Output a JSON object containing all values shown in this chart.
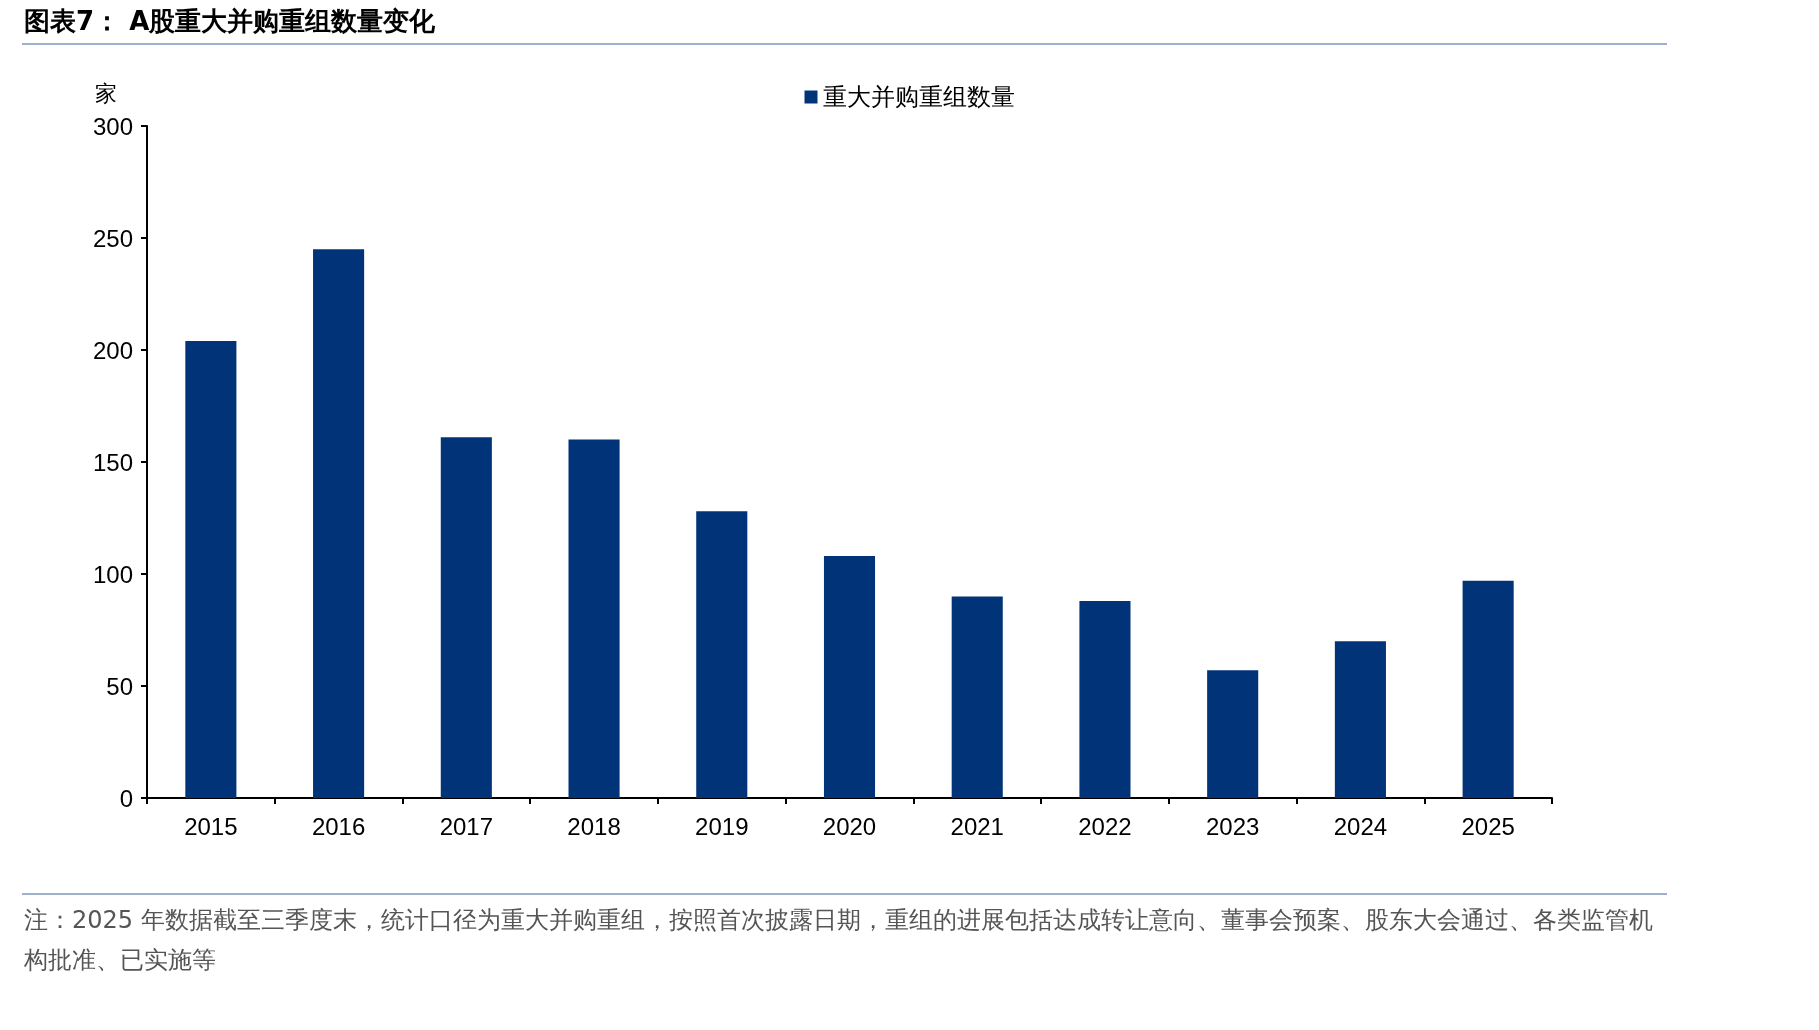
{
  "chart_data": {
    "type": "bar",
    "title": "图表7： A股重大并购重组数量变化",
    "ylabel": "家",
    "categories": [
      "2015",
      "2016",
      "2017",
      "2018",
      "2019",
      "2020",
      "2021",
      "2022",
      "2023",
      "2024",
      "2025"
    ],
    "series": [
      {
        "name": "重大并购重组数量",
        "color": "#003378",
        "values": [
          204,
          245,
          161,
          160,
          128,
          108,
          90,
          88,
          57,
          70,
          97
        ]
      }
    ],
    "ylim": [
      0,
      300
    ],
    "yticks": [
      0,
      50,
      100,
      150,
      200,
      250,
      300
    ],
    "grid": false,
    "legend": "top",
    "annotations": [
      "注：2025 年数据截至三季度末，统计口径为重大并购重组，按照首次披露日期，重组的进展包括达成转让意向、董事会预案、股东大会通过、各类监管机构批准、已实施等"
    ]
  }
}
